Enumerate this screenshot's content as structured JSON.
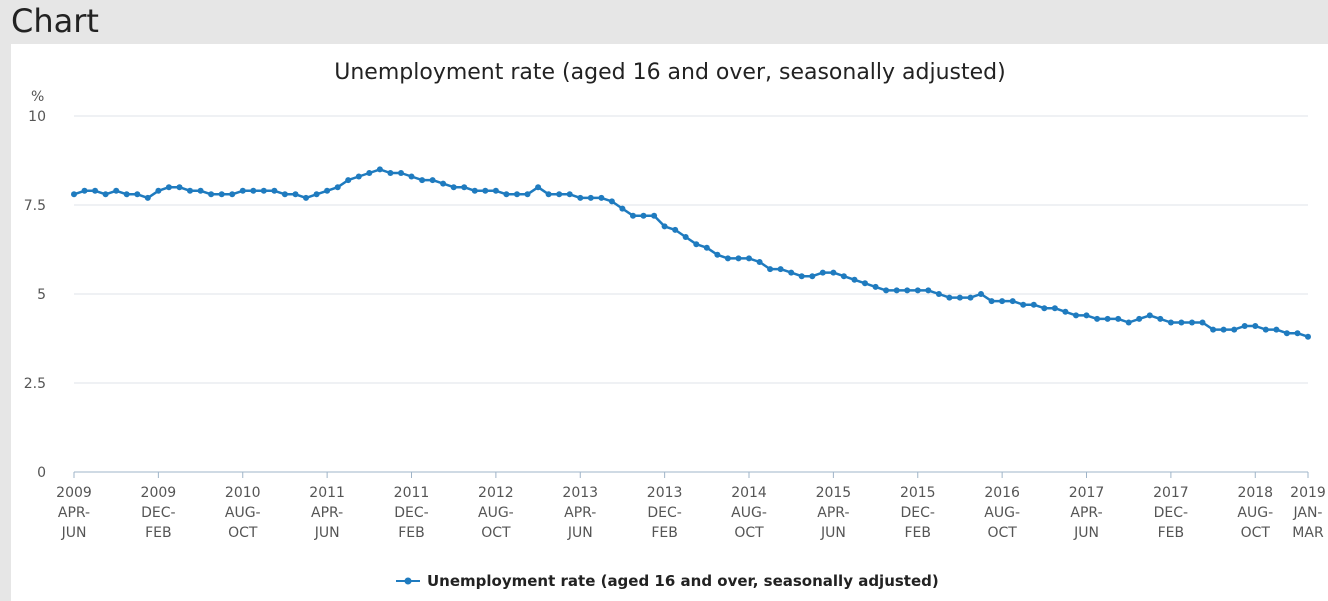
{
  "header": {
    "title": "Chart"
  },
  "colors": {
    "series": "#1f7bbf",
    "grid": "#dfe3e8",
    "axis": "#9fb4c8",
    "text": "#555555"
  },
  "chart_data": {
    "type": "line",
    "title": "Unemployment rate (aged 16 and over, seasonally adjusted)",
    "ylabel": "%",
    "xlabel": "",
    "ylim": [
      0,
      10
    ],
    "yticks": [
      0,
      2.5,
      5,
      7.5,
      10
    ],
    "ytick_labels": [
      "0",
      "2.5",
      "5",
      "7.5",
      "10"
    ],
    "grid": true,
    "legend": "bottom-center",
    "x_tick_labels": [
      {
        "index": 0,
        "lines": [
          "2009",
          "APR-",
          "JUN"
        ]
      },
      {
        "index": 8,
        "lines": [
          "2009",
          "DEC-",
          "FEB"
        ]
      },
      {
        "index": 16,
        "lines": [
          "2010",
          "AUG-",
          "OCT"
        ]
      },
      {
        "index": 24,
        "lines": [
          "2011",
          "APR-",
          "JUN"
        ]
      },
      {
        "index": 32,
        "lines": [
          "2011",
          "DEC-",
          "FEB"
        ]
      },
      {
        "index": 40,
        "lines": [
          "2012",
          "AUG-",
          "OCT"
        ]
      },
      {
        "index": 48,
        "lines": [
          "2013",
          "APR-",
          "JUN"
        ]
      },
      {
        "index": 56,
        "lines": [
          "2013",
          "DEC-",
          "FEB"
        ]
      },
      {
        "index": 64,
        "lines": [
          "2014",
          "AUG-",
          "OCT"
        ]
      },
      {
        "index": 72,
        "lines": [
          "2015",
          "APR-",
          "JUN"
        ]
      },
      {
        "index": 80,
        "lines": [
          "2015",
          "DEC-",
          "FEB"
        ]
      },
      {
        "index": 88,
        "lines": [
          "2016",
          "AUG-",
          "OCT"
        ]
      },
      {
        "index": 96,
        "lines": [
          "2017",
          "APR-",
          "JUN"
        ]
      },
      {
        "index": 104,
        "lines": [
          "2017",
          "DEC-",
          "FEB"
        ]
      },
      {
        "index": 112,
        "lines": [
          "2018",
          "AUG-",
          "OCT"
        ]
      },
      {
        "index": 117,
        "lines": [
          "2019",
          "JAN-",
          "MAR"
        ]
      }
    ],
    "series": [
      {
        "name": "Unemployment rate (aged 16 and over, seasonally adjusted)",
        "values": [
          7.8,
          7.9,
          7.9,
          7.8,
          7.9,
          7.8,
          7.8,
          7.7,
          7.9,
          8.0,
          8.0,
          7.9,
          7.9,
          7.8,
          7.8,
          7.8,
          7.9,
          7.9,
          7.9,
          7.9,
          7.8,
          7.8,
          7.7,
          7.8,
          7.9,
          8.0,
          8.2,
          8.3,
          8.4,
          8.5,
          8.4,
          8.4,
          8.3,
          8.2,
          8.2,
          8.1,
          8.0,
          8.0,
          7.9,
          7.9,
          7.9,
          7.8,
          7.8,
          7.8,
          8.0,
          7.8,
          7.8,
          7.8,
          7.7,
          7.7,
          7.7,
          7.6,
          7.4,
          7.2,
          7.2,
          7.2,
          6.9,
          6.8,
          6.6,
          6.4,
          6.3,
          6.1,
          6.0,
          6.0,
          6.0,
          5.9,
          5.7,
          5.7,
          5.6,
          5.5,
          5.5,
          5.6,
          5.6,
          5.5,
          5.4,
          5.3,
          5.2,
          5.1,
          5.1,
          5.1,
          5.1,
          5.1,
          5.0,
          4.9,
          4.9,
          4.9,
          5.0,
          4.8,
          4.8,
          4.8,
          4.7,
          4.7,
          4.6,
          4.6,
          4.5,
          4.4,
          4.4,
          4.3,
          4.3,
          4.3,
          4.2,
          4.3,
          4.4,
          4.3,
          4.2,
          4.2,
          4.2,
          4.2,
          4.0,
          4.0,
          4.0,
          4.1,
          4.1,
          4.0,
          4.0,
          3.9,
          3.9,
          3.8
        ]
      }
    ]
  }
}
